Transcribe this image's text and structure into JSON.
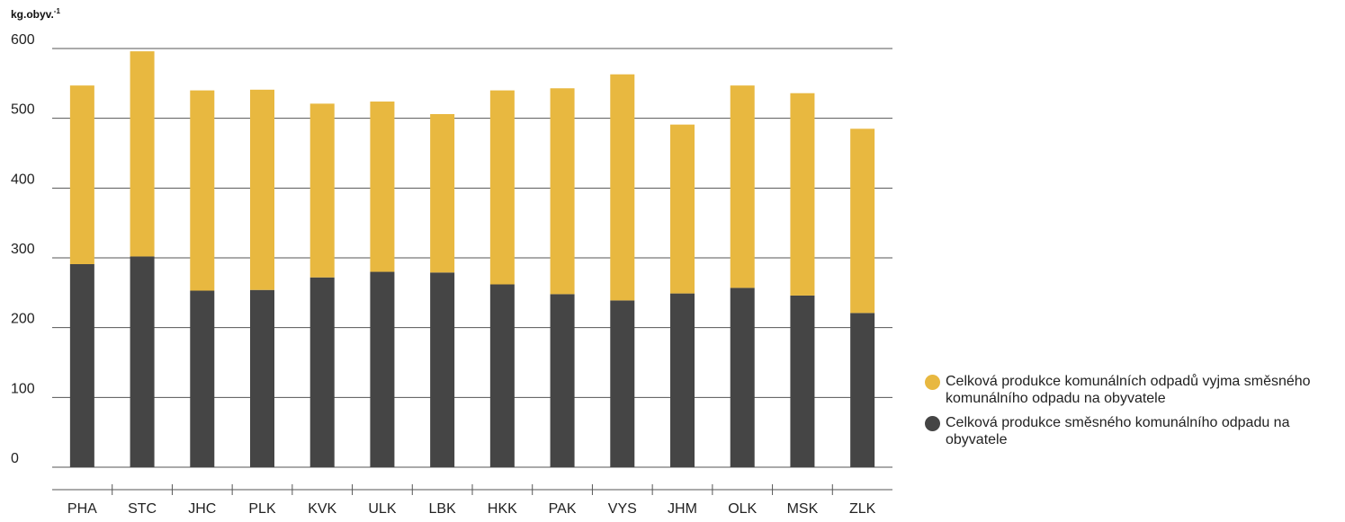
{
  "chart_data": {
    "type": "bar",
    "stacked": true,
    "ylabel": "kg.obyv.",
    "ylabel_sup": "-1",
    "ylim": [
      0,
      600
    ],
    "yticks": [
      0,
      100,
      200,
      300,
      400,
      500,
      600
    ],
    "grid": true,
    "legend_position": "right",
    "categories": [
      "PHA",
      "STC",
      "JHC",
      "PLK",
      "KVK",
      "ULK",
      "LBK",
      "HKK",
      "PAK",
      "VYS",
      "JHM",
      "OLK",
      "MSK",
      "ZLK"
    ],
    "series": [
      {
        "name": "Celková produkce směsného komunálního odpadu na obyvatele",
        "color": "#454545",
        "values": [
          291,
          302,
          253,
          254,
          272,
          280,
          279,
          262,
          248,
          239,
          249,
          257,
          246,
          221
        ]
      },
      {
        "name": "Celková produkce komunálních odpadů vyjma směsného komunálního odpadu na obyvatele",
        "color": "#e8b840",
        "values": [
          256,
          294,
          287,
          287,
          249,
          244,
          227,
          278,
          295,
          324,
          242,
          290,
          290,
          264
        ]
      }
    ]
  }
}
